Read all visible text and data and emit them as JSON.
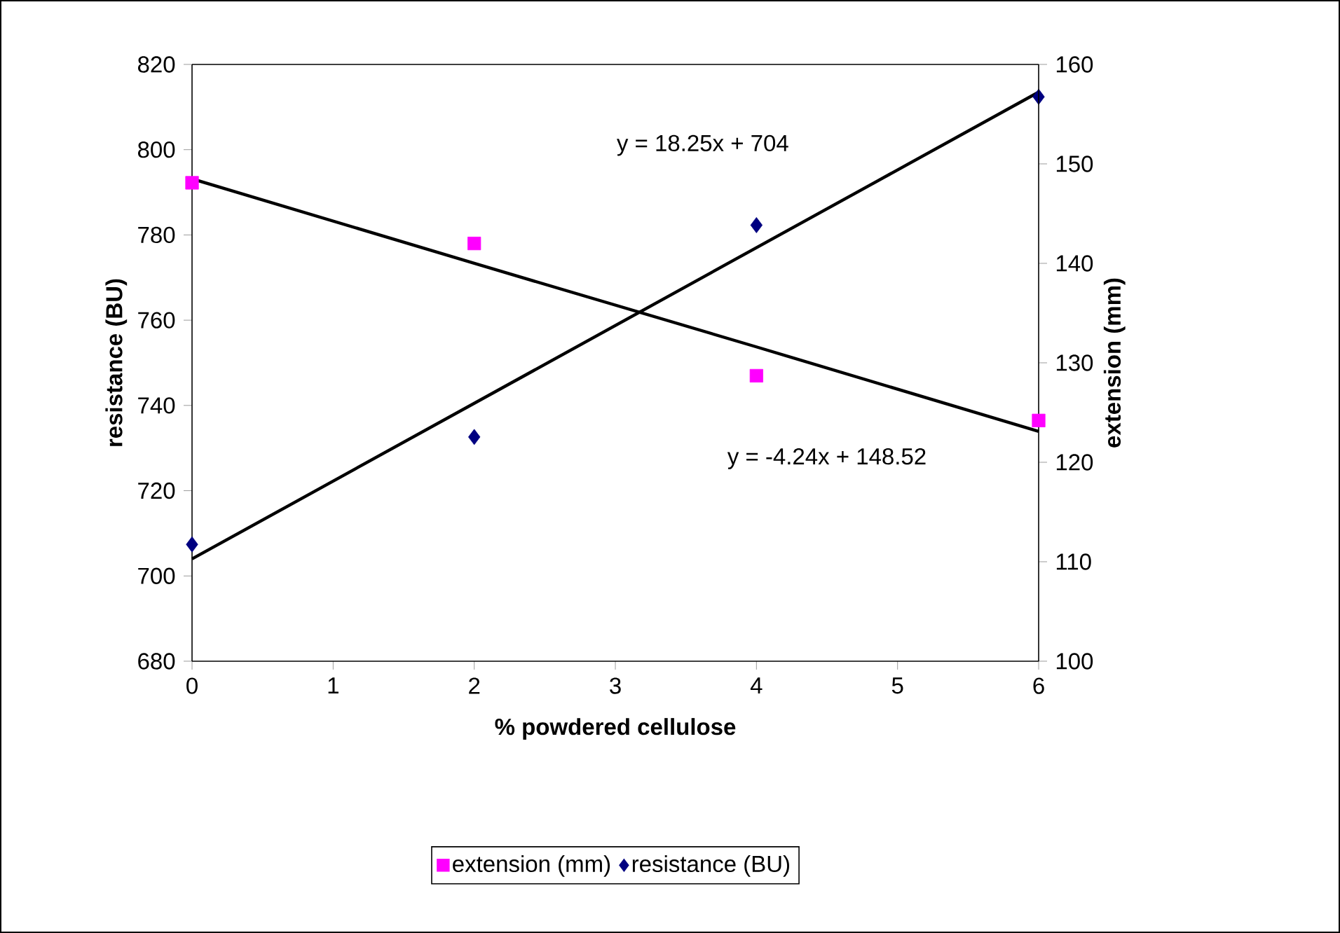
{
  "chart_data": {
    "type": "scatter",
    "xlabel": "% powdered cellulose",
    "ylabel": "resistance (BU)",
    "y2label": "extension (mm)",
    "xlim": [
      0,
      6
    ],
    "xticks": [
      0,
      1,
      2,
      3,
      4,
      5,
      6
    ],
    "ylim": [
      680,
      820
    ],
    "yticks": [
      680,
      700,
      720,
      740,
      760,
      780,
      800,
      820
    ],
    "y2lim": [
      100,
      160
    ],
    "y2ticks": [
      100,
      110,
      120,
      130,
      140,
      150,
      160
    ],
    "x": [
      0,
      2,
      4,
      6
    ],
    "series": [
      {
        "name": "extension (mm)",
        "color": "#ff00ff",
        "marker": "square",
        "axis": "y2",
        "values": [
          148.1,
          142.0,
          128.7,
          124.2
        ]
      },
      {
        "name": "resistance (BU)",
        "color": "#000080",
        "marker": "diamond",
        "axis": "y",
        "values": [
          707.4,
          732.6,
          782.3,
          812.4
        ]
      },
      {
        "type": "line",
        "color": "#000000",
        "marker": "none",
        "axis": "y",
        "values": [
          704,
          740.5,
          777,
          813.5
        ]
      },
      {
        "type": "line",
        "color": "#000000",
        "marker": "none",
        "axis": "y2",
        "values": [
          148.5,
          140.0,
          131.6,
          123.1
        ]
      }
    ],
    "annotations": [
      "y = 18.25x + 704",
      "y = -4.24x + 148.52"
    ],
    "grid": false,
    "legend": "bottom"
  }
}
